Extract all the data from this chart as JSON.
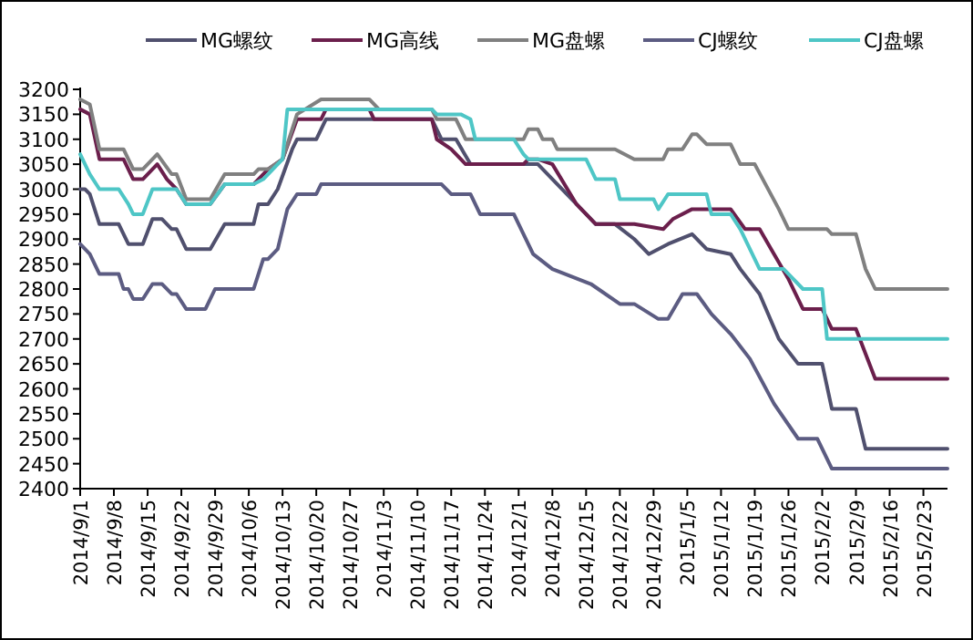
{
  "chart_data": {
    "type": "line",
    "legend": "top",
    "grid": false,
    "marker": "none",
    "line_style": "solid",
    "xlim": [
      "2014-09-01",
      "2015-02-28"
    ],
    "ylim": [
      2400,
      3200
    ],
    "yticks": [
      2400,
      2450,
      2500,
      2550,
      2600,
      2650,
      2700,
      2750,
      2800,
      2850,
      2900,
      2950,
      3000,
      3050,
      3100,
      3150,
      3200
    ],
    "xticks": [
      {
        "value": "2014-09-01",
        "label": "2014/9/1"
      },
      {
        "value": "2014-09-08",
        "label": "2014/9/8"
      },
      {
        "value": "2014-09-15",
        "label": "2014/9/15"
      },
      {
        "value": "2014-09-22",
        "label": "2014/9/22"
      },
      {
        "value": "2014-09-29",
        "label": "2014/9/29"
      },
      {
        "value": "2014-10-06",
        "label": "2014/10/6"
      },
      {
        "value": "2014-10-13",
        "label": "2014/10/13"
      },
      {
        "value": "2014-10-20",
        "label": "2014/10/20"
      },
      {
        "value": "2014-10-27",
        "label": "2014/10/27"
      },
      {
        "value": "2014-11-03",
        "label": "2014/11/3"
      },
      {
        "value": "2014-11-10",
        "label": "2014/11/10"
      },
      {
        "value": "2014-11-17",
        "label": "2014/11/17"
      },
      {
        "value": "2014-11-24",
        "label": "2014/11/24"
      },
      {
        "value": "2014-12-01",
        "label": "2014/12/1"
      },
      {
        "value": "2014-12-08",
        "label": "2014/12/8"
      },
      {
        "value": "2014-12-15",
        "label": "2014/12/15"
      },
      {
        "value": "2014-12-22",
        "label": "2014/12/22"
      },
      {
        "value": "2014-12-29",
        "label": "2014/12/29"
      },
      {
        "value": "2015-01-05",
        "label": "2015/1/5"
      },
      {
        "value": "2015-01-12",
        "label": "2015/1/12"
      },
      {
        "value": "2015-01-19",
        "label": "2015/1/19"
      },
      {
        "value": "2015-01-26",
        "label": "2015/1/26"
      },
      {
        "value": "2015-02-02",
        "label": "2015/2/2"
      },
      {
        "value": "2015-02-09",
        "label": "2015/2/9"
      },
      {
        "value": "2015-02-16",
        "label": "2015/2/16"
      },
      {
        "value": "2015-02-23",
        "label": "2015/2/23"
      }
    ],
    "series": [
      {
        "name": "MG螺纹",
        "color": "#50506e",
        "x": [
          "2014-09-01",
          "2014-09-02",
          "2014-09-03",
          "2014-09-05",
          "2014-09-09",
          "2014-09-11",
          "2014-09-14",
          "2014-09-16",
          "2014-09-18",
          "2014-09-20",
          "2014-09-21",
          "2014-09-23",
          "2014-09-28",
          "2014-10-01",
          "2014-10-07",
          "2014-10-08",
          "2014-10-10",
          "2014-10-12",
          "2014-10-15",
          "2014-10-16",
          "2014-10-20",
          "2014-10-22",
          "2014-11-13",
          "2014-11-15",
          "2014-11-18",
          "2014-11-21",
          "2014-12-05",
          "2014-12-13",
          "2014-12-17",
          "2014-12-21",
          "2014-12-25",
          "2014-12-28",
          "2015-01-01",
          "2015-01-06",
          "2015-01-09",
          "2015-01-14",
          "2015-01-16",
          "2015-01-20",
          "2015-01-24",
          "2015-01-28",
          "2015-02-02",
          "2015-02-04",
          "2015-02-09",
          "2015-02-11",
          "2015-02-28"
        ],
        "values": [
          3000,
          3000,
          2990,
          2930,
          2930,
          2890,
          2890,
          2940,
          2940,
          2920,
          2920,
          2880,
          2880,
          2930,
          2930,
          2970,
          2970,
          3000,
          3080,
          3100,
          3100,
          3140,
          3140,
          3100,
          3100,
          3050,
          3050,
          2970,
          2930,
          2930,
          2900,
          2870,
          2890,
          2910,
          2880,
          2870,
          2840,
          2790,
          2700,
          2650,
          2650,
          2560,
          2560,
          2480,
          2480
        ]
      },
      {
        "name": "MG高线",
        "color": "#6b1f4c",
        "x": [
          "2014-09-01",
          "2014-09-03",
          "2014-09-05",
          "2014-09-10",
          "2014-09-12",
          "2014-09-14",
          "2014-09-17",
          "2014-09-19",
          "2014-09-21",
          "2014-09-23",
          "2014-09-28",
          "2014-10-01",
          "2014-10-07",
          "2014-10-10",
          "2014-10-13",
          "2014-10-16",
          "2014-10-21",
          "2014-10-22",
          "2014-10-31",
          "2014-11-01",
          "2014-11-13",
          "2014-11-14",
          "2014-11-17",
          "2014-11-20",
          "2014-12-02",
          "2014-12-03",
          "2014-12-05",
          "2014-12-08",
          "2014-12-13",
          "2014-12-17",
          "2014-12-25",
          "2014-12-31",
          "2015-01-02",
          "2015-01-06",
          "2015-01-14",
          "2015-01-17",
          "2015-01-20",
          "2015-01-23",
          "2015-01-26",
          "2015-01-29",
          "2015-02-02",
          "2015-02-04",
          "2015-02-09",
          "2015-02-13",
          "2015-02-28"
        ],
        "values": [
          3160,
          3150,
          3060,
          3060,
          3020,
          3020,
          3050,
          3020,
          3000,
          2970,
          2970,
          3010,
          3010,
          3040,
          3060,
          3140,
          3140,
          3160,
          3160,
          3140,
          3140,
          3100,
          3080,
          3050,
          3050,
          3060,
          3060,
          3050,
          2970,
          2930,
          2930,
          2920,
          2940,
          2960,
          2960,
          2920,
          2920,
          2870,
          2820,
          2760,
          2760,
          2720,
          2720,
          2620,
          2620
        ]
      },
      {
        "name": "MG盘螺",
        "color": "#808080",
        "x": [
          "2014-09-01",
          "2014-09-03",
          "2014-09-05",
          "2014-09-10",
          "2014-09-12",
          "2014-09-14",
          "2014-09-17",
          "2014-09-20",
          "2014-09-21",
          "2014-09-23",
          "2014-09-28",
          "2014-10-01",
          "2014-10-07",
          "2014-10-08",
          "2014-10-10",
          "2014-10-13",
          "2014-10-16",
          "2014-10-21",
          "2014-10-31",
          "2014-11-02",
          "2014-11-13",
          "2014-11-14",
          "2014-11-18",
          "2014-11-20",
          "2014-12-02",
          "2014-12-03",
          "2014-12-05",
          "2014-12-06",
          "2014-12-08",
          "2014-12-09",
          "2014-12-21",
          "2014-12-25",
          "2014-12-31",
          "2015-01-01",
          "2015-01-04",
          "2015-01-06",
          "2015-01-07",
          "2015-01-09",
          "2015-01-14",
          "2015-01-16",
          "2015-01-19",
          "2015-01-24",
          "2015-01-26",
          "2015-02-03",
          "2015-02-04",
          "2015-02-09",
          "2015-02-11",
          "2015-02-13",
          "2015-02-28"
        ],
        "values": [
          3180,
          3170,
          3080,
          3080,
          3040,
          3040,
          3070,
          3030,
          3030,
          2980,
          2980,
          3030,
          3030,
          3040,
          3040,
          3060,
          3150,
          3180,
          3180,
          3160,
          3160,
          3140,
          3140,
          3100,
          3100,
          3120,
          3120,
          3100,
          3100,
          3080,
          3080,
          3060,
          3060,
          3080,
          3080,
          3110,
          3110,
          3090,
          3090,
          3050,
          3050,
          2960,
          2920,
          2920,
          2910,
          2910,
          2840,
          2800,
          2800
        ]
      },
      {
        "name": "CJ螺纹",
        "color": "#5c5c82",
        "x": [
          "2014-09-01",
          "2014-09-03",
          "2014-09-05",
          "2014-09-09",
          "2014-09-10",
          "2014-09-11",
          "2014-09-12",
          "2014-09-14",
          "2014-09-16",
          "2014-09-18",
          "2014-09-20",
          "2014-09-21",
          "2014-09-23",
          "2014-09-27",
          "2014-09-29",
          "2014-10-07",
          "2014-10-09",
          "2014-10-10",
          "2014-10-12",
          "2014-10-14",
          "2014-10-16",
          "2014-10-20",
          "2014-10-21",
          "2014-11-15",
          "2014-11-17",
          "2014-11-21",
          "2014-11-23",
          "2014-11-30",
          "2014-12-04",
          "2014-12-08",
          "2014-12-16",
          "2014-12-22",
          "2014-12-25",
          "2014-12-30",
          "2015-01-01",
          "2015-01-04",
          "2015-01-07",
          "2015-01-10",
          "2015-01-14",
          "2015-01-18",
          "2015-01-23",
          "2015-01-28",
          "2015-02-01",
          "2015-02-04",
          "2015-02-28"
        ],
        "values": [
          2890,
          2870,
          2830,
          2830,
          2800,
          2800,
          2780,
          2780,
          2810,
          2810,
          2790,
          2790,
          2760,
          2760,
          2800,
          2800,
          2860,
          2860,
          2880,
          2960,
          2990,
          2990,
          3010,
          3010,
          2990,
          2990,
          2950,
          2950,
          2870,
          2840,
          2810,
          2770,
          2770,
          2740,
          2740,
          2790,
          2790,
          2750,
          2710,
          2660,
          2570,
          2500,
          2500,
          2440,
          2440
        ]
      },
      {
        "name": "CJ盘螺",
        "color": "#4ec6c6",
        "x": [
          "2014-09-01",
          "2014-09-03",
          "2014-09-05",
          "2014-09-09",
          "2014-09-11",
          "2014-09-12",
          "2014-09-14",
          "2014-09-16",
          "2014-09-21",
          "2014-09-23",
          "2014-09-28",
          "2014-10-01",
          "2014-10-07",
          "2014-10-09",
          "2014-10-13",
          "2014-10-14",
          "2014-11-13",
          "2014-11-14",
          "2014-11-19",
          "2014-11-21",
          "2014-11-22",
          "2014-11-30",
          "2014-12-02",
          "2014-12-03",
          "2014-12-15",
          "2014-12-17",
          "2014-12-21",
          "2014-12-22",
          "2014-12-29",
          "2014-12-30",
          "2015-01-01",
          "2015-01-09",
          "2015-01-10",
          "2015-01-14",
          "2015-01-16",
          "2015-01-20",
          "2015-01-25",
          "2015-01-29",
          "2015-02-02",
          "2015-02-03",
          "2015-02-28"
        ],
        "values": [
          3070,
          3030,
          3000,
          3000,
          2970,
          2950,
          2950,
          3000,
          3000,
          2970,
          2970,
          3010,
          3010,
          3020,
          3060,
          3160,
          3160,
          3150,
          3150,
          3140,
          3100,
          3100,
          3070,
          3060,
          3060,
          3020,
          3020,
          2980,
          2980,
          2960,
          2990,
          2990,
          2950,
          2950,
          2920,
          2840,
          2840,
          2800,
          2800,
          2700,
          2700
        ]
      }
    ]
  }
}
